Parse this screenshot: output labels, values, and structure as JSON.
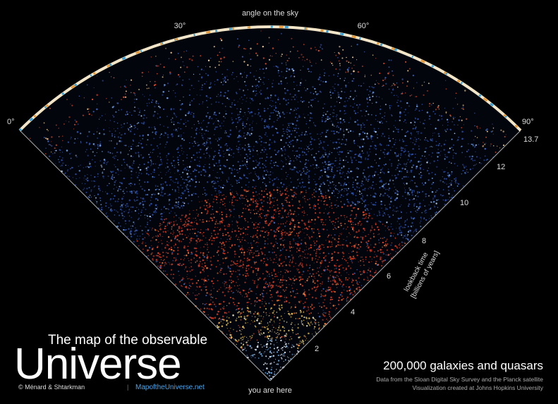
{
  "header": {
    "axis_title": "angle on the sky",
    "angle_ticks": [
      "0°",
      "30°",
      "60°",
      "90°"
    ]
  },
  "lookback": {
    "ticks": [
      "13.7",
      "12",
      "10",
      "8",
      "6",
      "4",
      "2"
    ],
    "title_lines": [
      "lookback time",
      "[billions of years]"
    ]
  },
  "origin_label": "you are here",
  "brand": {
    "line1": "The map of the observable",
    "line2": "Universe",
    "credit": "© Ménard & Shtarkman",
    "separator": "|",
    "url": "MapoftheUniverse.net"
  },
  "caption": {
    "title": "200,000 galaxies and quasars",
    "lines": [
      "Data from the Sloan Digital Sky Survey and the Planck satellite",
      "Visualization created at Johns Hopkins University"
    ]
  }
}
